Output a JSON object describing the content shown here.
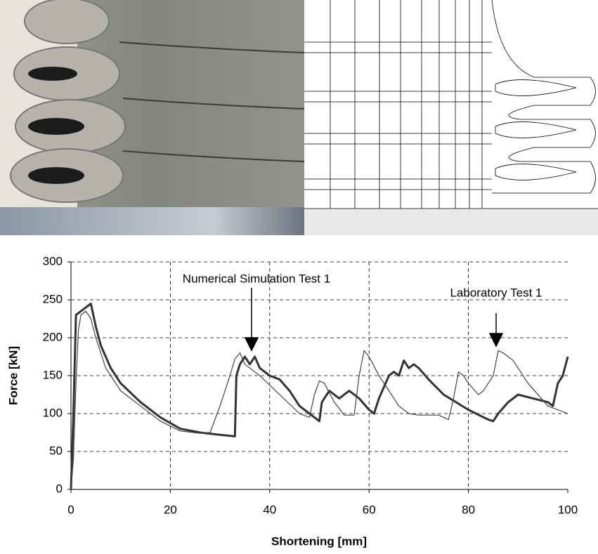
{
  "chart_data": {
    "type": "line",
    "xlabel": "Shortening [mm]",
    "ylabel": "Force [kN]",
    "annotations": [
      "Numerical Simulation Test 1",
      "Laboratory Test 1"
    ],
    "xlim": [
      0,
      100
    ],
    "xticks": [
      0,
      20,
      40,
      60,
      80,
      100
    ],
    "ylim": [
      0,
      300
    ],
    "yticks": [
      0,
      50,
      100,
      150,
      200,
      250,
      300
    ],
    "grid": true,
    "series": [
      {
        "color": "#333333",
        "width": 3,
        "x": [
          0,
          0.5,
          1,
          2,
          3,
          4,
          5,
          6,
          8,
          10,
          14,
          18,
          22,
          26,
          30,
          33,
          33.3,
          34,
          35,
          36,
          37,
          38,
          40,
          42,
          44,
          46,
          48,
          50,
          50.5,
          52,
          54,
          56,
          58,
          60,
          61,
          62,
          64,
          65,
          66,
          67,
          68,
          69,
          70,
          72,
          75,
          80,
          84,
          85,
          86,
          88,
          90,
          93,
          96,
          97,
          98,
          99,
          100
        ],
        "values": [
          0,
          100,
          230,
          235,
          240,
          245,
          215,
          190,
          160,
          140,
          115,
          95,
          80,
          75,
          72,
          70,
          150,
          165,
          175,
          165,
          175,
          160,
          150,
          145,
          130,
          110,
          100,
          90,
          115,
          130,
          120,
          130,
          120,
          105,
          100,
          120,
          150,
          155,
          150,
          170,
          160,
          165,
          160,
          145,
          125,
          105,
          92,
          90,
          100,
          115,
          125,
          120,
          115,
          110,
          140,
          150,
          175
        ]
      },
      {
        "color": "#444444",
        "width": 1.2,
        "x": [
          0,
          0.5,
          1,
          1.5,
          2,
          3,
          4,
          5,
          7,
          10,
          14,
          18,
          22,
          26,
          28,
          30,
          32,
          33,
          34,
          35,
          38,
          42,
          46,
          48,
          49,
          50,
          51,
          53,
          55,
          57,
          58,
          59,
          60,
          62,
          64,
          66,
          68,
          70,
          72,
          74,
          76,
          77,
          78,
          79,
          80,
          82,
          83,
          84,
          85,
          86,
          87,
          89,
          92,
          96,
          100
        ],
        "values": [
          0,
          40,
          140,
          210,
          230,
          235,
          225,
          200,
          160,
          130,
          110,
          90,
          77,
          74,
          75,
          110,
          150,
          172,
          180,
          165,
          150,
          125,
          100,
          95,
          125,
          143,
          140,
          115,
          98,
          98,
          150,
          183,
          175,
          150,
          130,
          110,
          100,
          98,
          98,
          98,
          92,
          120,
          155,
          150,
          140,
          125,
          130,
          140,
          150,
          183,
          180,
          170,
          140,
          110,
          100
        ]
      }
    ]
  }
}
